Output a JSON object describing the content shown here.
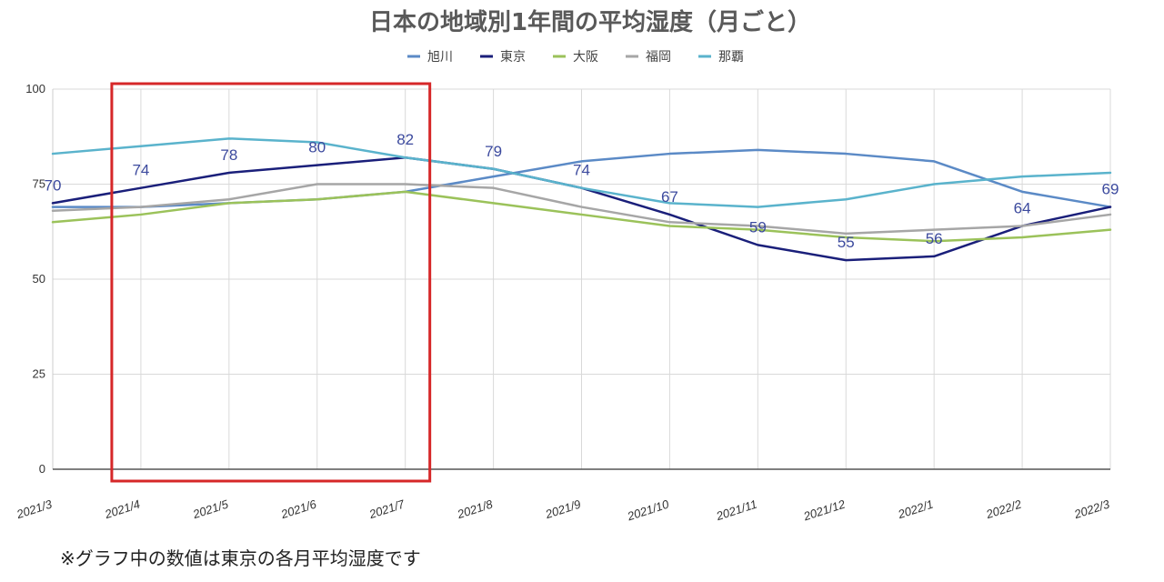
{
  "chart_data": {
    "type": "line",
    "title": "日本の地域別1年間の平均湿度（月ごと）",
    "categories": [
      "2021/3",
      "2021/4",
      "2021/5",
      "2021/6",
      "2021/7",
      "2021/8",
      "2021/9",
      "2021/10",
      "2021/11",
      "2021/12",
      "2022/1",
      "2022/2",
      "2022/3"
    ],
    "ylim": [
      0,
      100
    ],
    "yticks": [
      0,
      25,
      50,
      75,
      100
    ],
    "grid": true,
    "legend_position": "top-center",
    "series": [
      {
        "name": "旭川",
        "color": "#5b8ac6",
        "values": [
          69,
          69,
          70,
          71,
          73,
          77,
          81,
          83,
          84,
          83,
          81,
          73,
          69
        ]
      },
      {
        "name": "東京",
        "color": "#1a1f7a",
        "values": [
          70,
          74,
          78,
          80,
          82,
          79,
          74,
          67,
          59,
          55,
          56,
          64,
          69
        ],
        "labeled": true
      },
      {
        "name": "大阪",
        "color": "#9bc25a",
        "values": [
          65,
          67,
          70,
          71,
          73,
          70,
          67,
          64,
          63,
          61,
          60,
          61,
          63
        ]
      },
      {
        "name": "福岡",
        "color": "#a6a6a6",
        "values": [
          68,
          69,
          71,
          75,
          75,
          74,
          69,
          65,
          64,
          62,
          63,
          64,
          67
        ]
      },
      {
        "name": "那覇",
        "color": "#5ab3cc",
        "values": [
          83,
          85,
          87,
          86,
          82,
          79,
          74,
          70,
          69,
          71,
          75,
          77,
          78
        ]
      }
    ]
  },
  "highlight": {
    "color": "#d62728"
  },
  "note": "※グラフ中の数値は東京の各月平均湿度です"
}
